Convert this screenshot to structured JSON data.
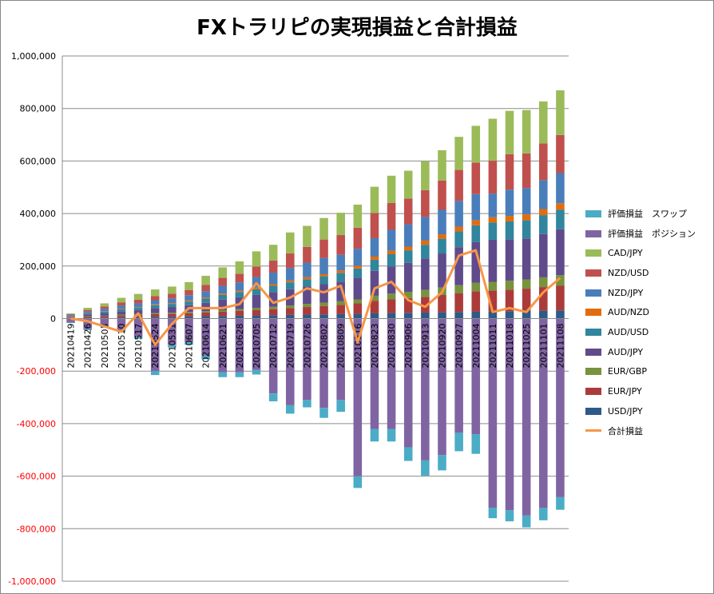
{
  "chart_data": {
    "type": "bar",
    "stacked": true,
    "title": "FXトラリピの実現損益と合計損益",
    "ylim": [
      -1000000,
      1000000
    ],
    "yticks": [
      -1000000,
      -800000,
      -600000,
      -400000,
      -200000,
      0,
      200000,
      400000,
      600000,
      800000,
      1000000
    ],
    "ytick_labels": [
      "-1,000,000",
      "-800,000",
      "-600,000",
      "-400,000",
      "-200,000",
      "0",
      "200,000",
      "400,000",
      "600,000",
      "800,000",
      "1,000,000"
    ],
    "negative_tick_color": "#FF0000",
    "grid": true,
    "legend_position": "right",
    "categories": [
      "20210419",
      "20210426",
      "20210503",
      "20210510",
      "20210517",
      "20210524",
      "20210531",
      "20210607",
      "20210614",
      "20210621",
      "20210628",
      "20210705",
      "20210712",
      "20210719",
      "20210726",
      "20210802",
      "20210809",
      "20210816",
      "20210823",
      "20210830",
      "20210906",
      "20210913",
      "20210920",
      "20210927",
      "20211004",
      "20211011",
      "20211018",
      "20211025",
      "20211101",
      "20211108"
    ],
    "series": [
      {
        "name": "USD/JPY",
        "color": "#2E5A87",
        "kind": "bar",
        "values": [
          2000,
          3000,
          4000,
          5000,
          6000,
          7000,
          7000,
          8000,
          9000,
          10000,
          11000,
          12000,
          13000,
          14000,
          15000,
          16000,
          17000,
          18000,
          20000,
          21000,
          22000,
          23000,
          24000,
          25000,
          26000,
          27000,
          28000,
          29000,
          30000,
          31000
        ]
      },
      {
        "name": "EUR/JPY",
        "color": "#AB3B3A",
        "kind": "bar",
        "values": [
          2000,
          4000,
          5000,
          7000,
          8000,
          10000,
          11000,
          12000,
          14000,
          16000,
          18000,
          20000,
          23000,
          26000,
          29000,
          32000,
          35000,
          40000,
          48000,
          52000,
          56000,
          60000,
          66000,
          72000,
          78000,
          80000,
          82000,
          85000,
          90000,
          95000
        ]
      },
      {
        "name": "EUR/GBP",
        "color": "#77933C",
        "kind": "bar",
        "values": [
          1000,
          2000,
          2000,
          3000,
          3000,
          4000,
          4000,
          5000,
          5000,
          6000,
          7000,
          8000,
          9000,
          10000,
          12000,
          13000,
          14000,
          15000,
          19000,
          22000,
          24000,
          26000,
          28000,
          30000,
          32000,
          33000,
          34000,
          35000,
          37000,
          39000
        ]
      },
      {
        "name": "AUD/JPY",
        "color": "#5F4B8B",
        "kind": "bar",
        "values": [
          3000,
          7000,
          10000,
          13000,
          16000,
          19000,
          22000,
          26000,
          32000,
          40000,
          45000,
          50000,
          56000,
          62000,
          66000,
          70000,
          75000,
          82000,
          95000,
          104000,
          110000,
          120000,
          130000,
          145000,
          155000,
          160000,
          158000,
          156000,
          165000,
          175000
        ]
      },
      {
        "name": "AUD/USD",
        "color": "#31859C",
        "kind": "bar",
        "values": [
          2000,
          4000,
          6000,
          8000,
          9000,
          11000,
          12000,
          14000,
          16000,
          18000,
          20000,
          22000,
          24000,
          26000,
          28000,
          30000,
          33000,
          36000,
          42000,
          46000,
          48000,
          52000,
          56000,
          60000,
          64000,
          66000,
          68000,
          70000,
          72000,
          75000
        ]
      },
      {
        "name": "AUD/NZD",
        "color": "#E46C0A",
        "kind": "bar",
        "values": [
          500,
          1000,
          1000,
          2000,
          2000,
          3000,
          3000,
          4000,
          4000,
          5000,
          5000,
          6000,
          6000,
          7000,
          8000,
          8000,
          9000,
          10000,
          12000,
          13000,
          14000,
          16000,
          17000,
          18000,
          19000,
          20000,
          21000,
          22000,
          23000,
          24000
        ]
      },
      {
        "name": "NZD/JPY",
        "color": "#4A7EBB",
        "kind": "bar",
        "values": [
          3000,
          6000,
          9000,
          12000,
          14000,
          16000,
          18000,
          20000,
          24000,
          30000,
          32000,
          40000,
          44000,
          48000,
          55000,
          62000,
          60000,
          65000,
          70000,
          80000,
          85000,
          90000,
          93000,
          98000,
          100000,
          90000,
          100000,
          100000,
          110000,
          115000
        ]
      },
      {
        "name": "NZD/USD",
        "color": "#C0504D",
        "kind": "bar",
        "values": [
          3000,
          6000,
          9000,
          12000,
          14000,
          16000,
          18000,
          20000,
          24000,
          30000,
          33000,
          40000,
          46000,
          55000,
          60000,
          70000,
          75000,
          80000,
          96000,
          102000,
          98000,
          102000,
          112000,
          118000,
          120000,
          125000,
          135000,
          132000,
          140000,
          145000
        ]
      },
      {
        "name": "CAD/JPY",
        "color": "#9BBB59",
        "kind": "bar",
        "values": [
          3000,
          8000,
          12000,
          17000,
          22000,
          25000,
          27000,
          30000,
          35000,
          40000,
          47000,
          58000,
          60000,
          80000,
          80000,
          82000,
          85000,
          88000,
          100000,
          104000,
          106000,
          110000,
          115000,
          126000,
          140000,
          160000,
          165000,
          165000,
          160000,
          170000
        ]
      },
      {
        "name": "評価損益　ポジション",
        "color": "#8064A2",
        "kind": "bar",
        "values": [
          -15000,
          -40000,
          -30000,
          -45000,
          -70000,
          -200000,
          -100000,
          -90000,
          -140000,
          -205000,
          -205000,
          -195000,
          -285000,
          -330000,
          -310000,
          -340000,
          -310000,
          -600000,
          -420000,
          -420000,
          -490000,
          -540000,
          -520000,
          -435000,
          -440000,
          -720000,
          -730000,
          -750000,
          -720000,
          -680000
        ]
      },
      {
        "name": "評価損益　スワップ",
        "color": "#4BACC6",
        "kind": "bar",
        "values": [
          -2000,
          -4000,
          -5000,
          -6000,
          -7000,
          -15000,
          -10000,
          -10000,
          -15000,
          -18000,
          -18000,
          -18000,
          -30000,
          -32000,
          -28000,
          -38000,
          -45000,
          -45000,
          -48000,
          -48000,
          -52000,
          -58000,
          -58000,
          -70000,
          -75000,
          -40000,
          -42000,
          -45000,
          -48000,
          -48000
        ]
      },
      {
        "name": "合計損益",
        "color": "#F79646",
        "kind": "line",
        "values": [
          0,
          -10000,
          -30000,
          -50000,
          20000,
          -100000,
          -20000,
          40000,
          40000,
          40000,
          55000,
          135000,
          60000,
          80000,
          115000,
          100000,
          125000,
          -90000,
          115000,
          140000,
          70000,
          45000,
          100000,
          240000,
          260000,
          25000,
          40000,
          25000,
          100000,
          155000
        ]
      }
    ]
  }
}
